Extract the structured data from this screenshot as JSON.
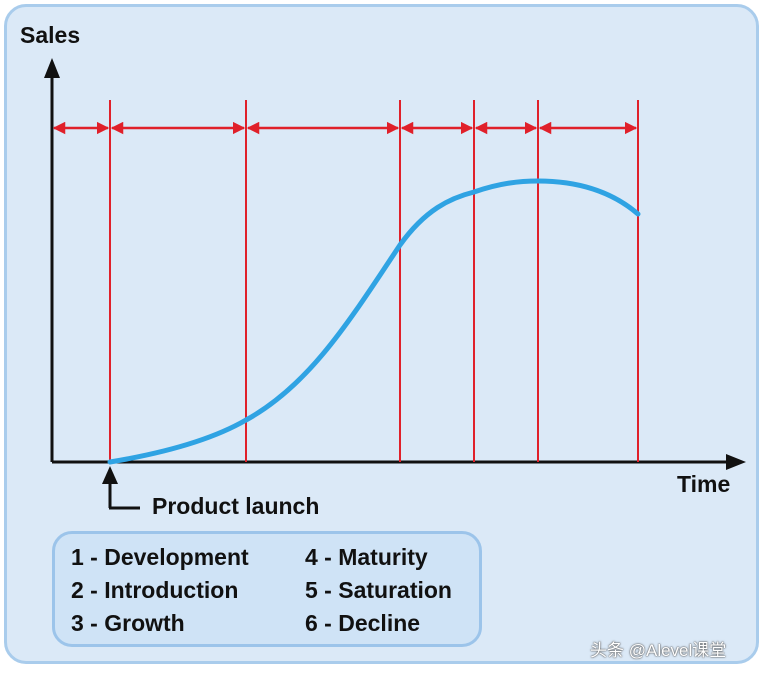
{
  "diagram": {
    "y_axis_label": "Sales",
    "x_axis_label": "Time",
    "launch_label": "Product launch",
    "stages": [
      {
        "number": "1",
        "label": "1 - Development"
      },
      {
        "number": "2",
        "label": "2 - Introduction"
      },
      {
        "number": "3",
        "label": "3 - Growth"
      },
      {
        "number": "4",
        "label": "4 - Maturity"
      },
      {
        "number": "5",
        "label": "5 - Saturation"
      },
      {
        "number": "6",
        "label": "6 - Decline"
      }
    ],
    "colors": {
      "curve": "#2fa3e3",
      "stage_lines": "#e0202a",
      "axes": "#111111",
      "background": "#dbe9f7"
    }
  },
  "watermark": "头条 @Alevel课堂"
}
